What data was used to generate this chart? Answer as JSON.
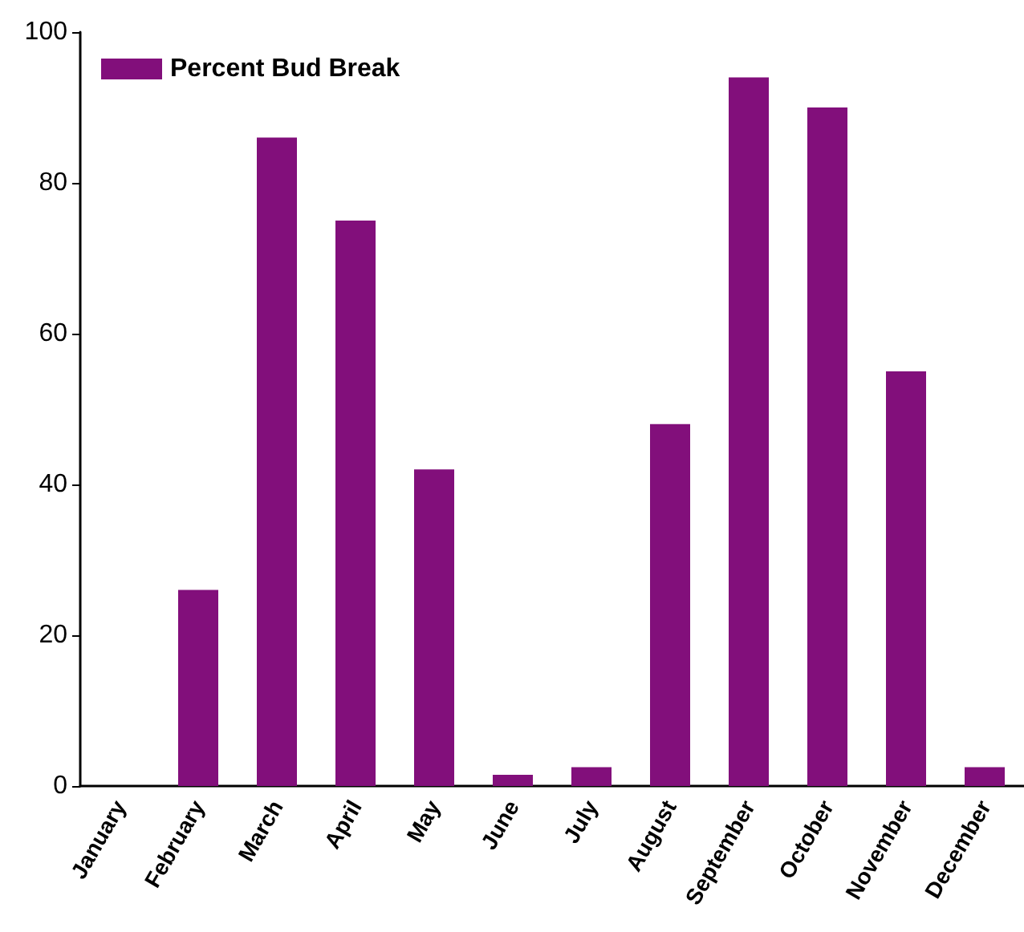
{
  "chart_data": {
    "type": "bar",
    "categories": [
      "January",
      "February",
      "March",
      "April",
      "May",
      "June",
      "July",
      "August",
      "September",
      "October",
      "November",
      "December"
    ],
    "series": [
      {
        "name": "Percent Bud Break",
        "color": "#820f7b",
        "values": [
          0,
          26,
          86,
          75,
          42,
          1.5,
          2.5,
          48,
          94,
          90,
          55,
          2.5
        ]
      }
    ],
    "ylim": [
      0,
      100
    ],
    "yticks": [
      0,
      20,
      40,
      60,
      80,
      100
    ],
    "grid": false,
    "legend": "top left"
  }
}
